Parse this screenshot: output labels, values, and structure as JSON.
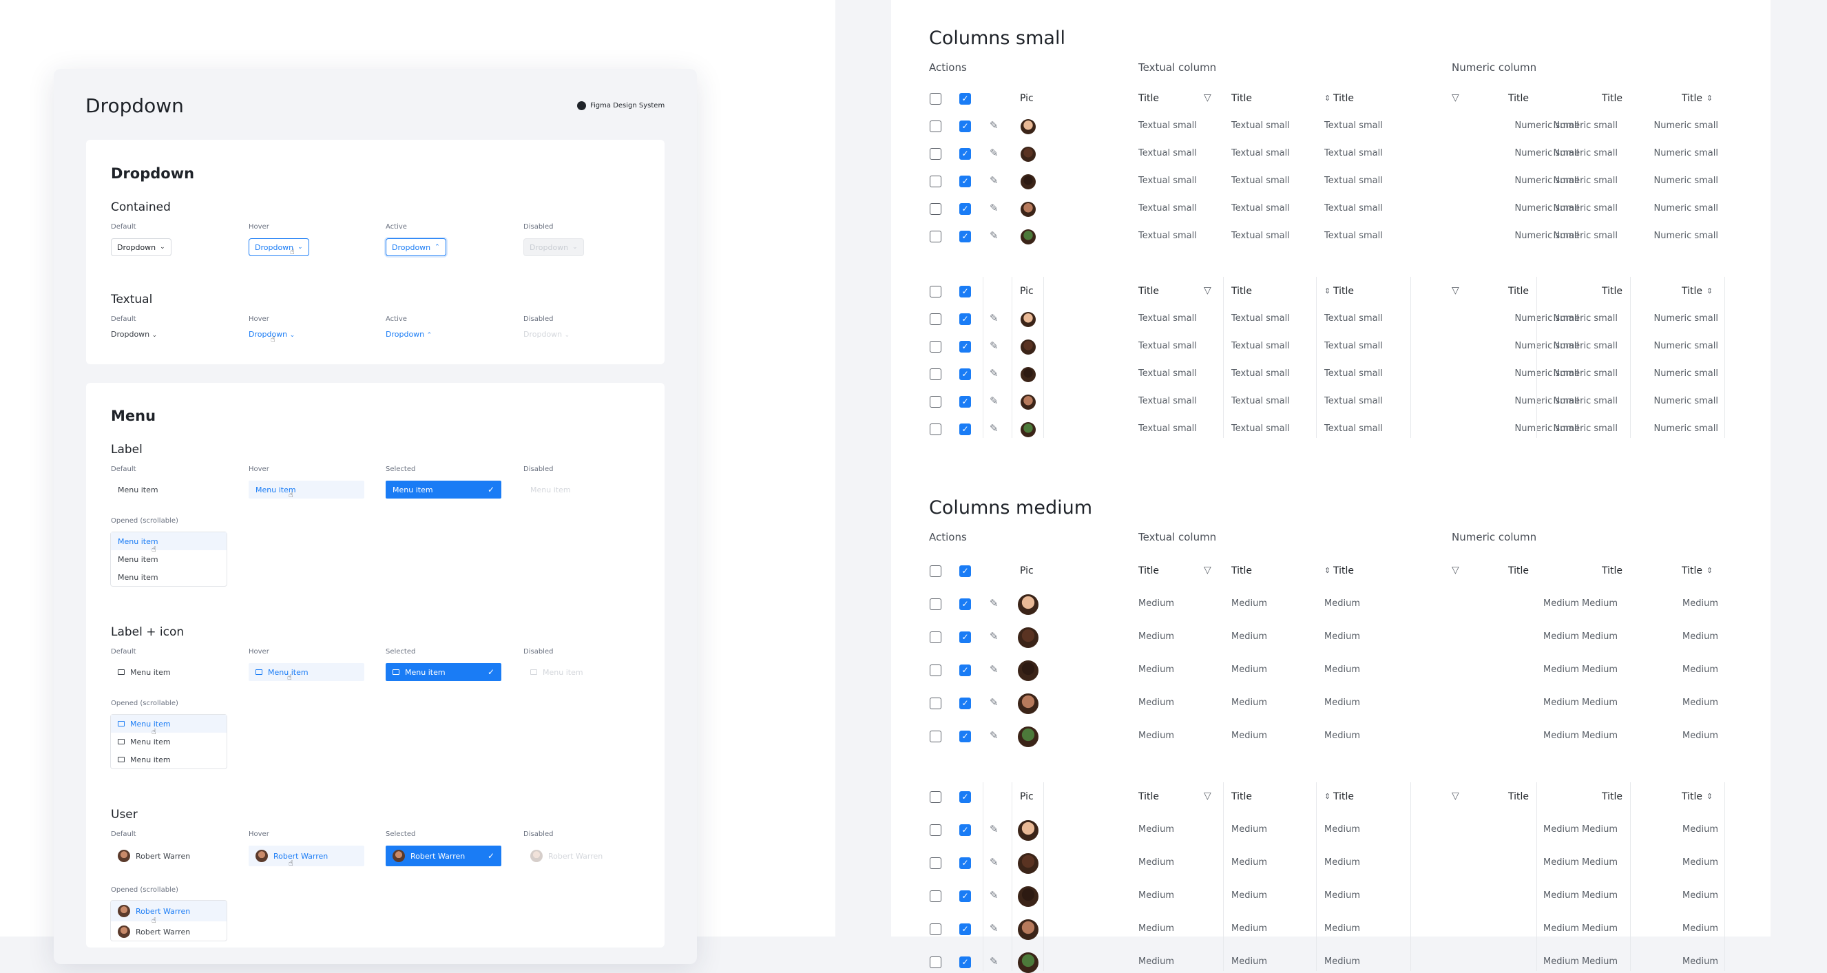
{
  "left": {
    "title": "Dropdown",
    "brand": "Figma Design System",
    "brand_icon": "figma-logo-icon",
    "dropdown_card": {
      "heading": "Dropdown",
      "contained": {
        "heading": "Contained",
        "states": [
          "Default",
          "Hover",
          "Active",
          "Disabled"
        ],
        "value": "Dropdown"
      },
      "textual": {
        "heading": "Textual",
        "states": [
          "Default",
          "Hover",
          "Active",
          "Disabled"
        ],
        "value": "Dropdown"
      }
    },
    "menu_card": {
      "heading": "Menu",
      "label": {
        "heading": "Label",
        "states": [
          "Default",
          "Hover",
          "Selected",
          "Disabled"
        ],
        "item": "Menu item",
        "opened": "Opened (scrollable)"
      },
      "label_icon": {
        "heading": "Label + icon",
        "states": [
          "Default",
          "Hover",
          "Selected",
          "Disabled"
        ],
        "item": "Menu item",
        "opened": "Opened (scrollable)"
      },
      "user": {
        "heading": "User",
        "states": [
          "Default",
          "Hover",
          "Selected",
          "Disabled"
        ],
        "item": "Robert Warren",
        "opened": "Opened (scrollable)"
      }
    },
    "accent": "#1a7cf5"
  },
  "right": {
    "small": {
      "title": "Columns small",
      "groups": [
        "Actions",
        "Textual column",
        "Numeric column"
      ],
      "pic": "Pic",
      "head": "Title",
      "text_cell": "Textual small",
      "num_cell": "Numeric small"
    },
    "medium": {
      "title": "Columns medium",
      "groups": [
        "Actions",
        "Textual column",
        "Numeric column"
      ],
      "pic": "Pic",
      "head": "Title",
      "text_cell": "Medium",
      "num_cell": "Medium"
    }
  }
}
